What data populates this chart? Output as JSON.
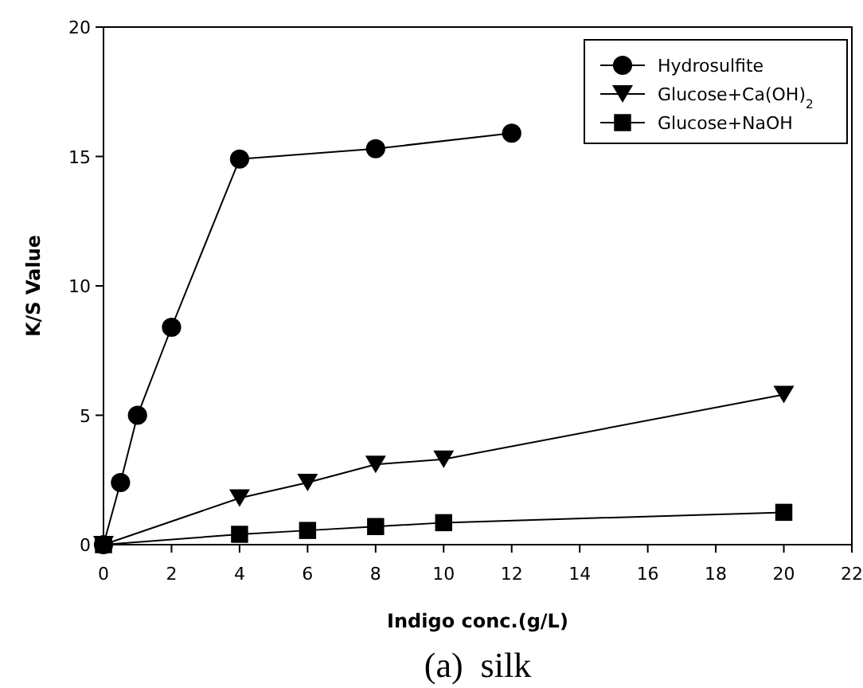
{
  "chart_data": {
    "type": "line",
    "xlabel": "Indigo conc.(g/L)",
    "ylabel": "K/S Value",
    "annotations": [
      "(a)  silk"
    ],
    "xlim": [
      0,
      22
    ],
    "xticks": [
      0,
      2,
      4,
      6,
      8,
      10,
      12,
      14,
      16,
      18,
      20,
      22
    ],
    "ylim": [
      0,
      20
    ],
    "yticks": [
      0,
      5,
      10,
      15,
      20
    ],
    "grid": false,
    "legend": "top right",
    "line_style": "solid",
    "series": [
      {
        "name": "Hydrosulfite",
        "color": "#000000",
        "marker": "circle",
        "x": [
          0,
          0.5,
          1,
          2,
          4,
          8,
          12
        ],
        "values": [
          0,
          2.4,
          5,
          8.4,
          14.9,
          15.3,
          15.9
        ]
      },
      {
        "name": "Glucose+Ca(OH)$_{2}$",
        "color": "#000000",
        "marker": "triangle",
        "x": [
          0,
          4,
          6,
          8,
          10,
          20
        ],
        "values": [
          0,
          1.8,
          2.4,
          3.1,
          3.3,
          5.8
        ]
      },
      {
        "name": "Glucose+NaOH",
        "color": "#000000",
        "marker": "square",
        "x": [
          0,
          4,
          6,
          8,
          10,
          20
        ],
        "values": [
          0,
          0.4,
          0.55,
          0.7,
          0.85,
          1.25
        ]
      }
    ]
  }
}
